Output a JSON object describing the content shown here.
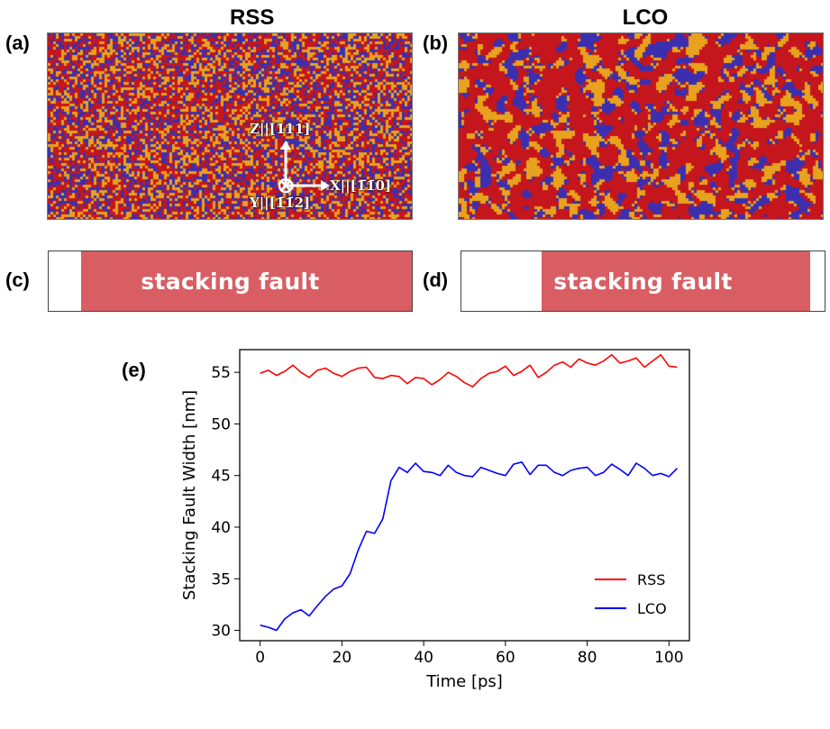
{
  "panels": {
    "a": {
      "label": "(a)",
      "title": "RSS"
    },
    "b": {
      "label": "(b)",
      "title": "LCO"
    },
    "c": {
      "label": "(c)",
      "text": "stacking fault"
    },
    "d": {
      "label": "(d)",
      "text": "stacking fault"
    },
    "e": {
      "label": "(e)"
    }
  },
  "axes_labels": {
    "z": "Z||[111]",
    "x": "X||[1̅1̄0]",
    "y": "Y||[1̄1̄2]"
  },
  "colors": {
    "atom_red": "#c4161c",
    "atom_blue": "#3b2fb0",
    "atom_orange": "#e8a21e",
    "fault_red": "#d95e63",
    "rss_line": "#ff0000",
    "lco_line": "#0000ff"
  },
  "fault_fraction": {
    "c": {
      "start": 0.09,
      "end": 1.0
    },
    "d": {
      "start": 0.22,
      "end": 0.96
    }
  },
  "chart_data": {
    "type": "line",
    "xlabel": "Time [ps]",
    "ylabel": "Stacking Fault Width [nm]",
    "xlim": [
      -5,
      105
    ],
    "ylim": [
      29,
      57.2
    ],
    "xticks": [
      0,
      20,
      40,
      60,
      80,
      100
    ],
    "yticks": [
      30,
      35,
      40,
      45,
      50,
      55
    ],
    "legend": "lower-right",
    "grid": false,
    "series": [
      {
        "name": "RSS",
        "color": "#ff0000",
        "x": [
          0,
          2,
          4,
          6,
          8,
          10,
          12,
          14,
          16,
          18,
          20,
          22,
          24,
          26,
          28,
          30,
          32,
          34,
          36,
          38,
          40,
          42,
          44,
          46,
          48,
          50,
          52,
          54,
          56,
          58,
          60,
          62,
          64,
          66,
          68,
          70,
          72,
          74,
          76,
          78,
          80,
          82,
          84,
          86,
          88,
          90,
          92,
          94,
          96,
          98,
          100,
          102
        ],
        "y": [
          54.9,
          55.2,
          54.7,
          55.1,
          55.7,
          55.0,
          54.5,
          55.2,
          55.4,
          54.9,
          54.6,
          55.1,
          55.4,
          55.5,
          54.5,
          54.4,
          54.7,
          54.6,
          53.9,
          54.5,
          54.4,
          53.8,
          54.3,
          55.0,
          54.6,
          54.0,
          53.6,
          54.4,
          54.9,
          55.1,
          55.6,
          54.7,
          55.1,
          55.7,
          54.5,
          55.0,
          55.7,
          56.0,
          55.5,
          56.3,
          55.9,
          55.7,
          56.1,
          56.7,
          55.9,
          56.1,
          56.4,
          55.5,
          56.1,
          56.7,
          55.6,
          55.5
        ]
      },
      {
        "name": "LCO",
        "color": "#0000ff",
        "x": [
          0,
          2,
          4,
          6,
          8,
          10,
          12,
          14,
          16,
          18,
          20,
          22,
          24,
          26,
          28,
          30,
          32,
          34,
          36,
          38,
          40,
          42,
          44,
          46,
          48,
          50,
          52,
          54,
          56,
          58,
          60,
          62,
          64,
          66,
          68,
          70,
          72,
          74,
          76,
          78,
          80,
          82,
          84,
          86,
          88,
          90,
          92,
          94,
          96,
          98,
          100,
          102
        ],
        "y": [
          30.5,
          30.3,
          30.0,
          31.1,
          31.7,
          32.0,
          31.4,
          32.4,
          33.3,
          34.0,
          34.3,
          35.5,
          37.8,
          39.6,
          39.4,
          40.8,
          44.5,
          45.8,
          45.3,
          46.2,
          45.4,
          45.3,
          45.0,
          46.0,
          45.3,
          45.0,
          44.9,
          45.8,
          45.5,
          45.2,
          45.0,
          46.1,
          46.3,
          45.1,
          46.0,
          46.0,
          45.3,
          45.0,
          45.5,
          45.7,
          45.8,
          45.0,
          45.3,
          46.1,
          45.6,
          45.0,
          46.2,
          45.7,
          45.0,
          45.2,
          44.9,
          45.7
        ]
      }
    ]
  }
}
